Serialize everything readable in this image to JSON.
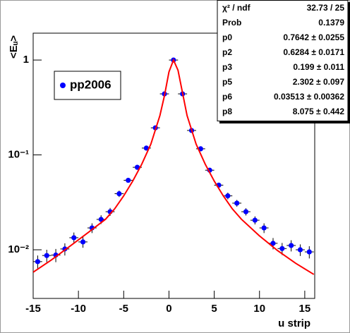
{
  "chart_data": {
    "type": "scatter",
    "xlabel": "u strip",
    "ylabel": "<Eᵤ>",
    "log_y": true,
    "xlim": [
      -15,
      16.1
    ],
    "ylim": [
      0.00307,
      1.92
    ],
    "xticks": [
      -15,
      -10,
      -5,
      0,
      5,
      10,
      15
    ],
    "yticks": [
      {
        "value": 0.01,
        "label": "10⁻²"
      },
      {
        "value": 0.1,
        "label": "10⁻¹"
      },
      1
    ],
    "series": [
      {
        "name": "pp2006",
        "color": "#0000ff",
        "x": [
          -14.5,
          -13.5,
          -12.5,
          -11.5,
          -10.5,
          -9.5,
          -8.5,
          -7.5,
          -6.5,
          -5.5,
          -4.5,
          -3.5,
          -2.5,
          -1.5,
          -0.5,
          0.5,
          1.5,
          2.5,
          3.5,
          4.5,
          5.5,
          6.5,
          7.5,
          8.5,
          9.5,
          10.5,
          11.5,
          12.5,
          13.5,
          14.5,
          15.5
        ],
        "values": [
          0.0075,
          0.0087,
          0.0088,
          0.0102,
          0.0134,
          0.0121,
          0.017,
          0.0209,
          0.0252,
          0.039,
          0.054,
          0.074,
          0.118,
          0.193,
          0.44,
          1.0,
          0.44,
          0.181,
          0.116,
          0.069,
          0.048,
          0.037,
          0.031,
          0.0252,
          0.0205,
          0.017,
          0.0117,
          0.0103,
          0.0111,
          0.01,
          0.0095
        ],
        "errors": [
          0.0012,
          0.0013,
          0.0014,
          0.0015,
          0.0018,
          0.0016,
          0.002,
          0.0022,
          0.0024,
          0.003,
          0.003,
          0.004,
          0.005,
          0.007,
          0.012,
          0.02,
          0.012,
          0.006,
          0.005,
          0.004,
          0.003,
          0.003,
          0.0025,
          0.0022,
          0.002,
          0.002,
          0.0016,
          0.0015,
          0.0015,
          0.0014,
          0.0014
        ]
      },
      {
        "type": "line",
        "color": "#ff0000",
        "x": [
          -15,
          -13,
          -11,
          -9,
          -7,
          -6,
          -5,
          -4,
          -3,
          -2,
          -1,
          -0.5,
          0,
          0.5,
          1,
          1.5,
          2,
          3,
          4,
          5,
          6,
          7,
          8,
          10,
          12,
          14,
          16
        ],
        "values": [
          0.0058,
          0.0078,
          0.0108,
          0.015,
          0.021,
          0.027,
          0.037,
          0.053,
          0.08,
          0.13,
          0.26,
          0.42,
          0.75,
          1.0,
          0.78,
          0.45,
          0.26,
          0.13,
          0.08,
          0.053,
          0.037,
          0.027,
          0.021,
          0.014,
          0.0098,
          0.0072,
          0.0055
        ]
      }
    ],
    "stats": [
      [
        "χ² / ndf",
        "32.73 / 25"
      ],
      [
        "Prob",
        "0.1379"
      ],
      [
        "p0",
        "0.7642 ± 0.0255"
      ],
      [
        "p2",
        "0.6284 ± 0.0171"
      ],
      [
        "p3",
        "0.199 ± 0.011"
      ],
      [
        "p5",
        "2.302 ± 0.097"
      ],
      [
        "p6",
        "0.03513 ± 0.00362"
      ],
      [
        "p8",
        "8.075 ± 0.442"
      ]
    ]
  }
}
